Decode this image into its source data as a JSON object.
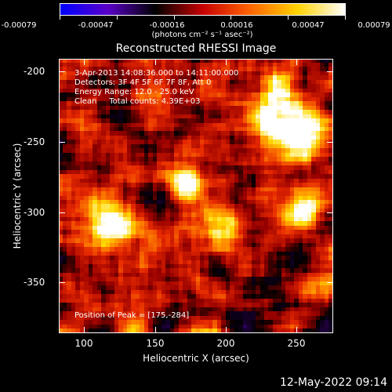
{
  "colorbar": {
    "tick_labels": [
      "-0.00079",
      "-0.00047",
      "-0.00016",
      "0.00016",
      "0.00047",
      "0.00079"
    ],
    "units": "(photons cm⁻² s⁻¹ asec⁻²)",
    "colors": [
      "#0000ff",
      "#5a00c8",
      "#000000",
      "#c80000",
      "#ff6400",
      "#ffd200",
      "#ffffff"
    ]
  },
  "title": "Reconstructed RHESSI Image",
  "annotation": {
    "time_range": "3-Apr-2013 14:08:36.000 to 14:11:00.000",
    "detectors": "Detectors: 3F 4F 5F 6F 7F 8F, Att 0",
    "energy": "Energy Range: 12.0 - 25.0 keV",
    "method": "Clean     Total counts: 4.39E+03"
  },
  "peak": "Position of Peak = [175,-284]",
  "axes": {
    "ylabel": "Heliocentric Y (arcsec)",
    "xlabel": "Heliocentric X (arcsec)",
    "yticks": [
      "-200",
      "-250",
      "-300",
      "-350"
    ],
    "xticks": [
      "100",
      "150",
      "200",
      "250"
    ],
    "xrange": [
      82,
      276
    ],
    "yrange": [
      -386,
      -191
    ]
  },
  "footer_date": "12-May-2022 09:14"
}
